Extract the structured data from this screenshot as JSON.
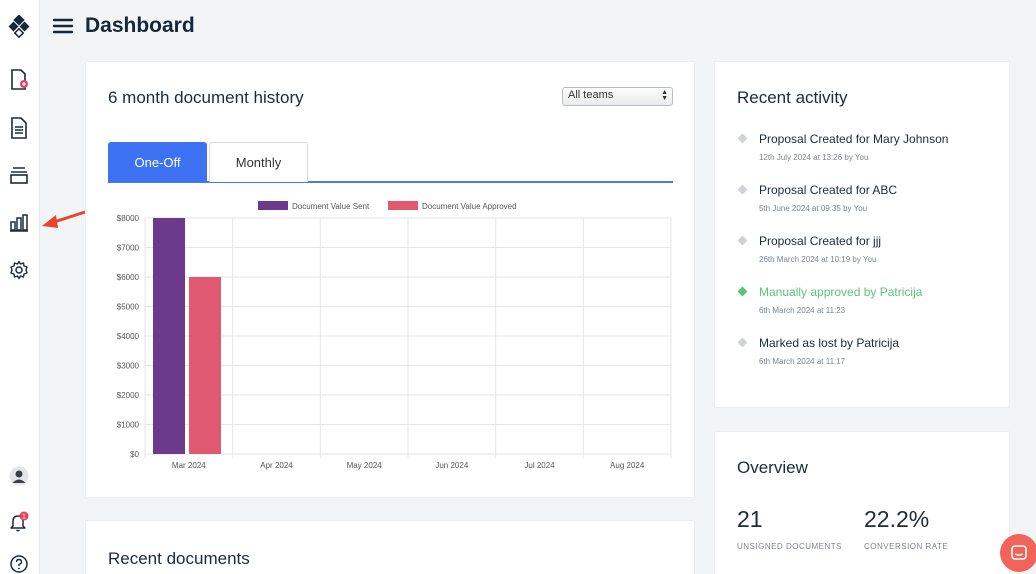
{
  "header": {
    "title": "Dashboard"
  },
  "sidebar": {
    "items": [
      {
        "icon": "logo-icon"
      },
      {
        "icon": "new-document-icon"
      },
      {
        "icon": "documents-icon"
      },
      {
        "icon": "templates-icon"
      },
      {
        "icon": "analytics-icon"
      },
      {
        "icon": "settings-icon"
      }
    ],
    "notifications_count": "1"
  },
  "history": {
    "title": "6 month document history",
    "team_filter": "All teams",
    "tabs": [
      "One-Off",
      "Monthly"
    ]
  },
  "chart_data": {
    "type": "bar",
    "categories": [
      "Mar 2024",
      "Apr 2024",
      "May 2024",
      "Jun 2024",
      "Jul 2024",
      "Aug 2024"
    ],
    "series": [
      {
        "name": "Document Value Sent",
        "values": [
          8000,
          0,
          0,
          0,
          0,
          0
        ],
        "color": "#6b3a8c"
      },
      {
        "name": "Document Value Approved",
        "values": [
          6000,
          0,
          0,
          0,
          0,
          0
        ],
        "color": "#e05b72"
      }
    ],
    "yticks": [
      "$0",
      "$1000",
      "$2000",
      "$3000",
      "$4000",
      "$5000",
      "$6000",
      "$7000",
      "$8000"
    ],
    "ylim": [
      0,
      8000
    ],
    "grid": true,
    "legend": "top"
  },
  "activity": {
    "title": "Recent activity",
    "items": [
      {
        "title": "Proposal Created for Mary Johnson",
        "sub": "12th July 2024 at 13:26 by You",
        "highlight": false
      },
      {
        "title": "Proposal Created for ABC",
        "sub": "5th June 2024 at 09:35 by You",
        "highlight": false
      },
      {
        "title": "Proposal Created for jjj",
        "sub": "26th March 2024 at 10:19 by You",
        "highlight": false
      },
      {
        "title": "Manually approved by Patricija",
        "sub": "6th March 2024 at 11:23",
        "highlight": true
      },
      {
        "title": "Marked as lost by Patricija",
        "sub": "6th March 2024 at 11:17",
        "highlight": false
      }
    ]
  },
  "overview": {
    "title": "Overview",
    "unsigned_value": "21",
    "unsigned_label": "UNSIGNED DOCUMENTS",
    "conversion_value": "22.2%",
    "conversion_label": "CONVERSION RATE"
  },
  "recent_documents": {
    "title": "Recent documents"
  }
}
